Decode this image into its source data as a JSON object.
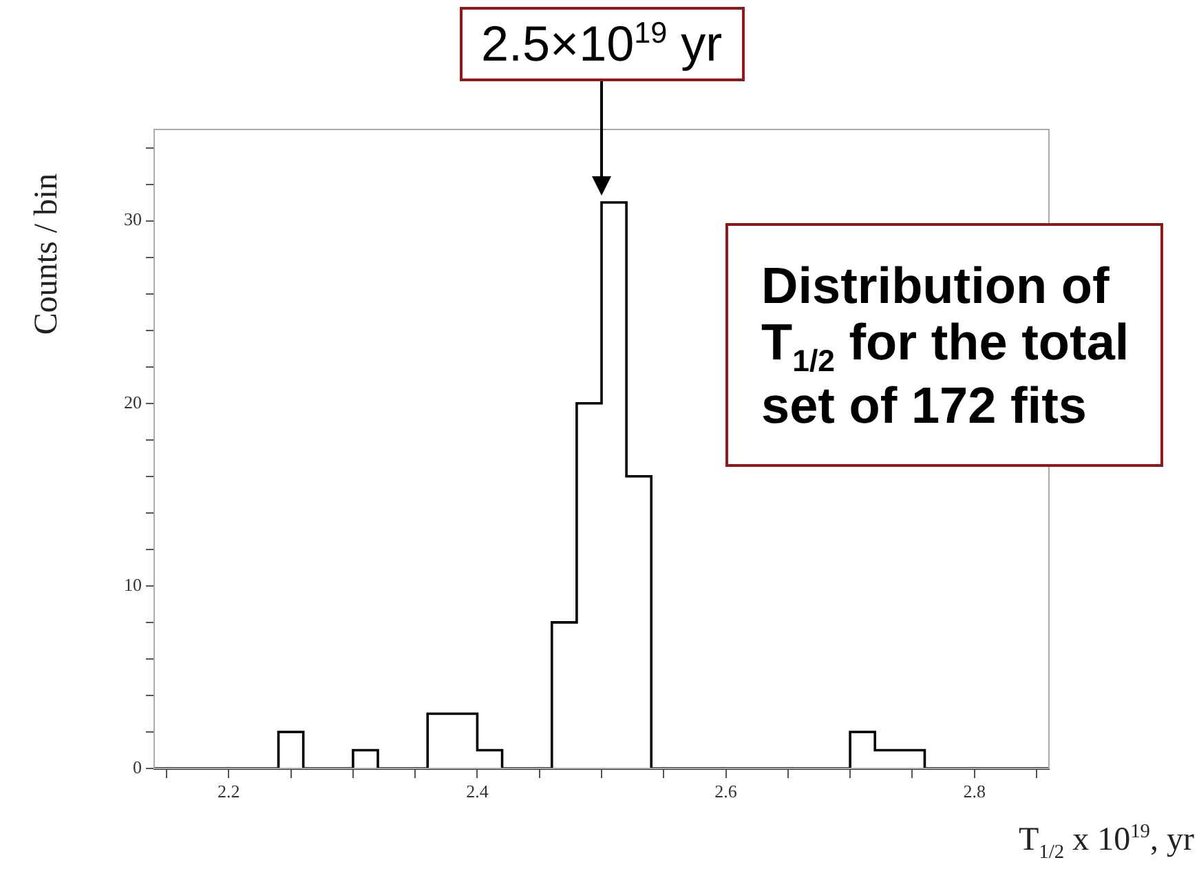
{
  "chart_data": {
    "type": "histogram",
    "bins": [
      2.14,
      2.16,
      2.18,
      2.2,
      2.22,
      2.24,
      2.26,
      2.28,
      2.3,
      2.32,
      2.34,
      2.36,
      2.38,
      2.4,
      2.42,
      2.44,
      2.46,
      2.48,
      2.5,
      2.52,
      2.54,
      2.56,
      2.58,
      2.6,
      2.62,
      2.64,
      2.66,
      2.68,
      2.7,
      2.72,
      2.74,
      2.76,
      2.78,
      2.8,
      2.82,
      2.84,
      2.86
    ],
    "values": [
      0,
      0,
      0,
      0,
      0,
      2,
      0,
      0,
      1,
      0,
      0,
      3,
      3,
      1,
      0,
      0,
      8,
      20,
      31,
      16,
      0,
      0,
      0,
      0,
      0,
      0,
      0,
      0,
      2,
      1,
      1,
      0,
      0,
      0,
      0,
      0
    ],
    "color": "#000000",
    "xlim": [
      2.14,
      2.86
    ],
    "xticks": [
      {
        "value": 2.15,
        "label": null
      },
      {
        "value": 2.2,
        "label": "2.2"
      },
      {
        "value": 2.25,
        "label": null
      },
      {
        "value": 2.3,
        "label": null
      },
      {
        "value": 2.35,
        "label": null
      },
      {
        "value": 2.4,
        "label": "2.4"
      },
      {
        "value": 2.45,
        "label": null
      },
      {
        "value": 2.5,
        "label": null
      },
      {
        "value": 2.55,
        "label": null
      },
      {
        "value": 2.6,
        "label": "2.6"
      },
      {
        "value": 2.65,
        "label": null
      },
      {
        "value": 2.7,
        "label": null
      },
      {
        "value": 2.75,
        "label": null
      },
      {
        "value": 2.8,
        "label": "2.8"
      },
      {
        "value": 2.85,
        "label": null
      }
    ],
    "ylim": [
      0,
      35
    ],
    "yticks": [
      0,
      {
        "value": 2,
        "label": null
      },
      {
        "value": 4,
        "label": null
      },
      {
        "value": 6,
        "label": null
      },
      {
        "value": 8,
        "label": null
      },
      10,
      {
        "value": 12,
        "label": null
      },
      {
        "value": 14,
        "label": null
      },
      {
        "value": 16,
        "label": null
      },
      {
        "value": 18,
        "label": null
      },
      20,
      {
        "value": 22,
        "label": null
      },
      {
        "value": 24,
        "label": null
      },
      {
        "value": 26,
        "label": null
      },
      {
        "value": 28,
        "label": null
      },
      30,
      {
        "value": 32,
        "label": null
      },
      {
        "value": 34,
        "label": null
      }
    ],
    "xlabel": "T$_{1/2}$ x 10$^{19}$, yr",
    "ylabel": "Counts / bin",
    "annotations": [
      {
        "text": "2.5×10$^{19}$ yr",
        "x": 2.5,
        "y": 31
      },
      "Distribution of T$_{1/2}$ for the total set of 172 fits"
    ],
    "grid": false,
    "legend": false
  }
}
